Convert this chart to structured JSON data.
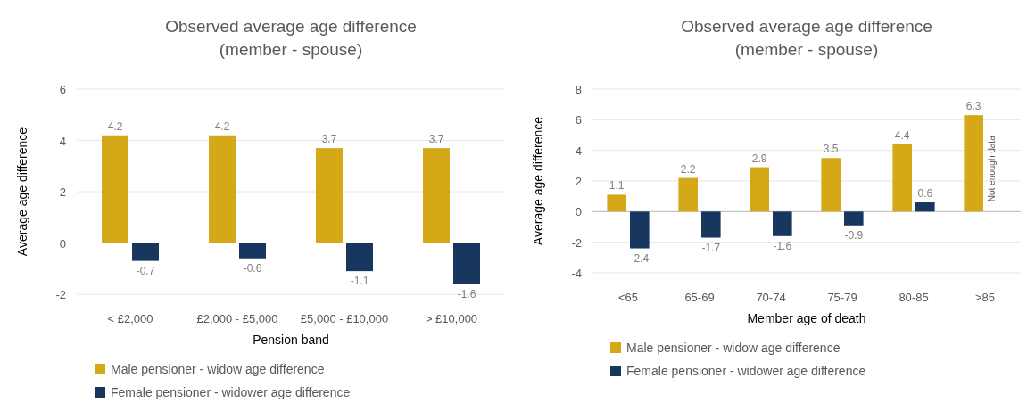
{
  "chart_data": [
    {
      "type": "bar",
      "title": "Observed average age difference",
      "subtitle": "(member - spouse)",
      "xlabel": "Pension band",
      "ylabel": "Average age difference",
      "categories": [
        "< £2,000",
        "£2,000 - £5,000",
        "£5,000 - £10,000",
        "> £10,000"
      ],
      "series": [
        {
          "name": "Male pensioner - widow age difference",
          "color": "#d4a817",
          "values": [
            4.2,
            4.2,
            3.7,
            3.7
          ]
        },
        {
          "name": "Female pensioner - widower age difference",
          "color": "#17375e",
          "values": [
            -0.7,
            -0.6,
            -1.1,
            -1.6
          ]
        }
      ],
      "ylim": [
        -2,
        6
      ],
      "yticks": [
        -2,
        0,
        2,
        4,
        6
      ],
      "grid": "y",
      "legend": "bottom",
      "data_labels": true
    },
    {
      "type": "bar",
      "title": "Observed average age difference",
      "subtitle": "(member - spouse)",
      "xlabel": "Member age of death",
      "ylabel": "Average age difference",
      "categories": [
        "<65",
        "65-69",
        "70-74",
        "75-79",
        "80-85",
        ">85"
      ],
      "series": [
        {
          "name": "Male pensioner - widow age difference",
          "color": "#d4a817",
          "values": [
            1.1,
            2.2,
            2.9,
            3.5,
            4.4,
            6.3
          ]
        },
        {
          "name": "Female pensioner - widower age difference",
          "color": "#17375e",
          "values": [
            -2.4,
            -1.7,
            -1.6,
            -0.9,
            0.6,
            null
          ]
        }
      ],
      "ylim": [
        -4,
        8
      ],
      "yticks": [
        -4,
        -2,
        0,
        2,
        4,
        6,
        8
      ],
      "grid": "y",
      "legend": "bottom",
      "data_labels": true,
      "annotations": [
        {
          "text": "Not enough data",
          "x": ">85",
          "y": 2.8
        }
      ]
    }
  ]
}
